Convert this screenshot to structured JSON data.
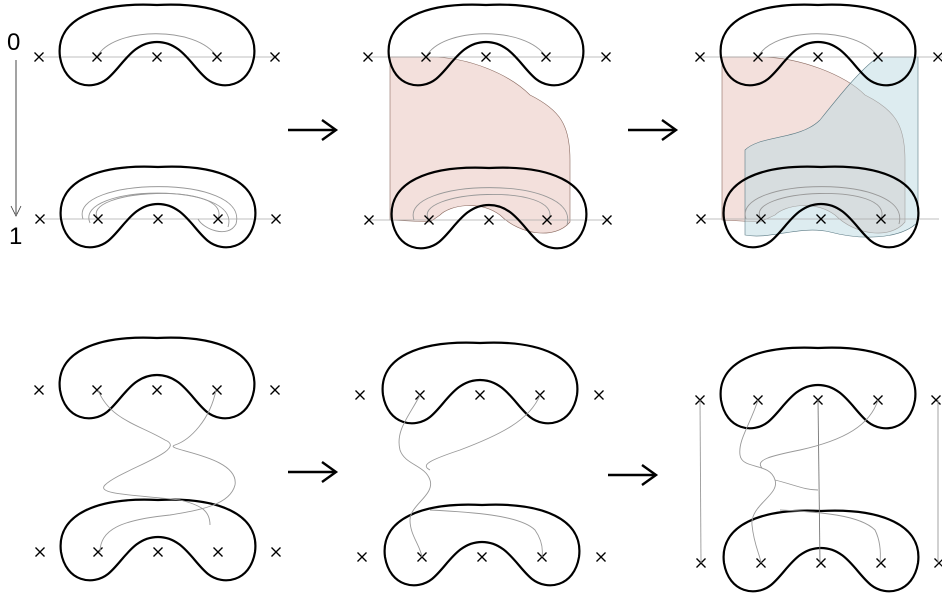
{
  "axis": {
    "start_label": "0",
    "end_label": "1"
  },
  "colors": {
    "surface_red": "#e9c7bf",
    "surface_blue": "#bcd9e2",
    "outline": "#000000",
    "strand": "#999999"
  },
  "icons": [
    "x-mark-icon",
    "right-arrow-icon",
    "down-arrow-icon"
  ]
}
